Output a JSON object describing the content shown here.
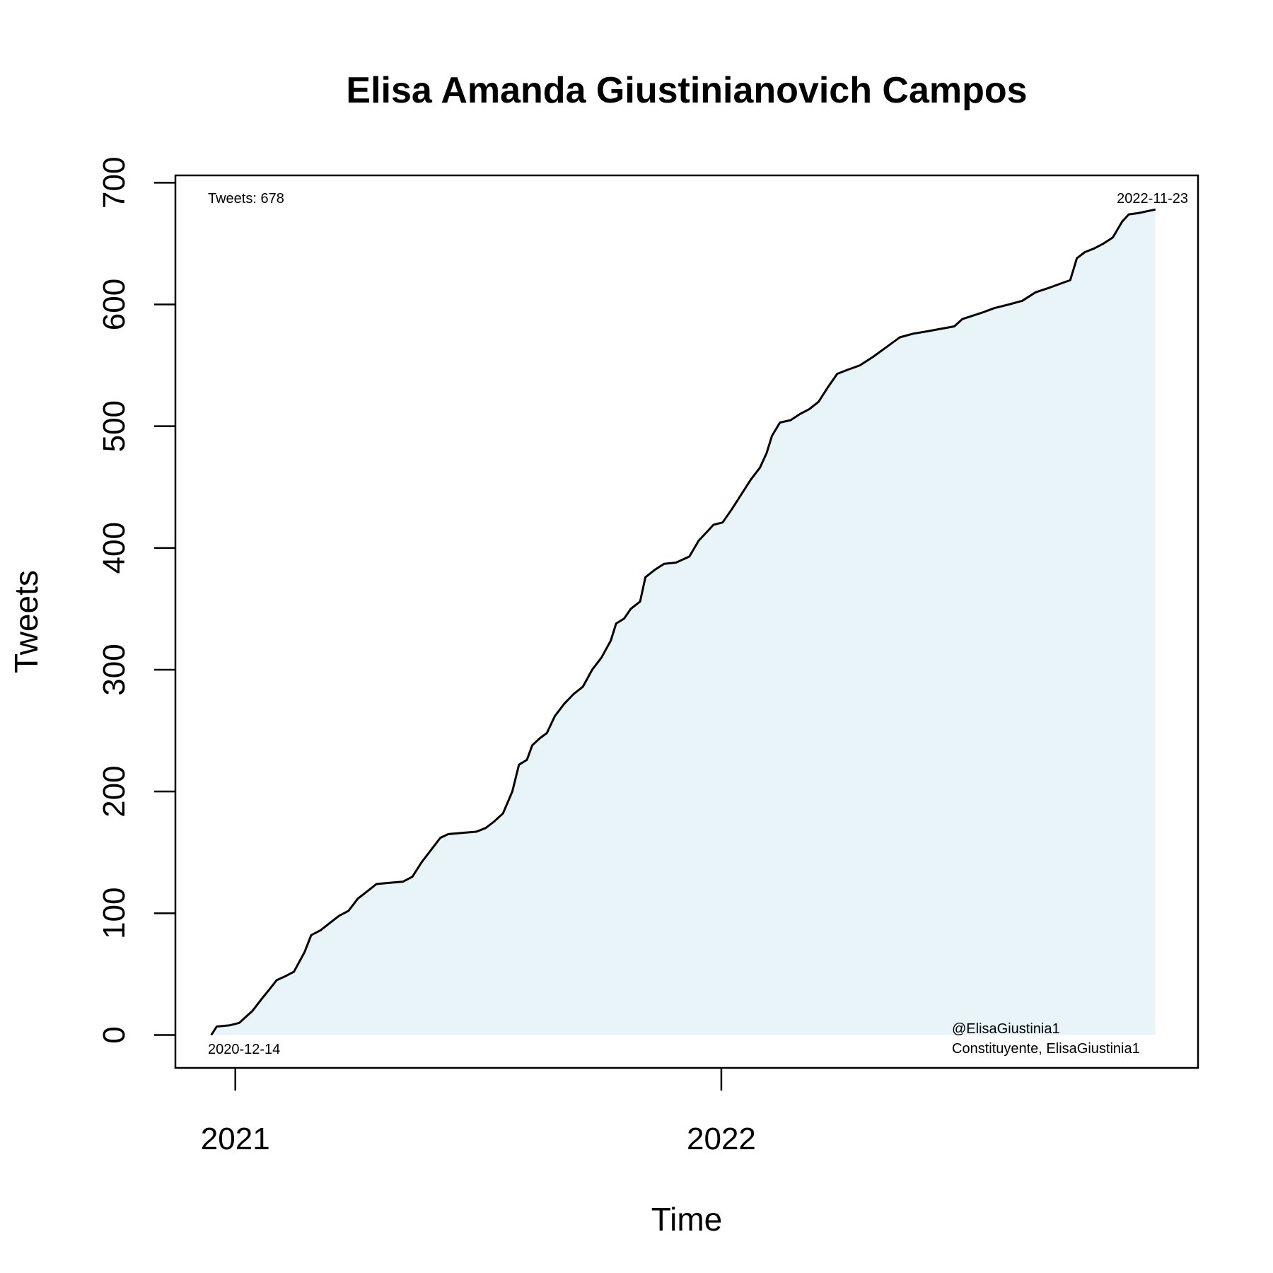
{
  "chart_data": {
    "type": "area",
    "title": "Elisa Amanda Giustinianovich Campos",
    "xlabel": "Time",
    "ylabel": "Tweets",
    "xlim": [
      "2020-11-17",
      "2022-12-25"
    ],
    "ylim": [
      -27,
      706
    ],
    "x_ticks": [
      {
        "date": "2021-01-01",
        "label": "2021"
      },
      {
        "date": "2022-01-01",
        "label": "2022"
      }
    ],
    "y_ticks": [
      0,
      100,
      200,
      300,
      400,
      500,
      600,
      700
    ],
    "grid": false,
    "fill_color": "#e8f4f8",
    "line_color": "#000000",
    "annotations": {
      "total": "Tweets: 678",
      "start_date": "2020-12-14",
      "end_date": "2022-11-23",
      "handle": "@ElisaGiustinia1",
      "source": "Constituyente, ElisaGiustinia1"
    },
    "series": [
      {
        "points": [
          [
            "2020-12-14",
            0
          ],
          [
            "2020-12-18",
            7
          ],
          [
            "2020-12-28",
            8
          ],
          [
            "2021-01-04",
            10
          ],
          [
            "2021-01-08",
            14
          ],
          [
            "2021-01-14",
            20
          ],
          [
            "2021-01-21",
            30
          ],
          [
            "2021-01-27",
            38
          ],
          [
            "2021-02-01",
            45
          ],
          [
            "2021-02-07",
            48
          ],
          [
            "2021-02-14",
            52
          ],
          [
            "2021-02-17",
            58
          ],
          [
            "2021-02-22",
            68
          ],
          [
            "2021-02-27",
            82
          ],
          [
            "2021-03-06",
            86
          ],
          [
            "2021-03-13",
            92
          ],
          [
            "2021-03-20",
            98
          ],
          [
            "2021-03-27",
            102
          ],
          [
            "2021-04-03",
            112
          ],
          [
            "2021-04-10",
            118
          ],
          [
            "2021-04-17",
            124
          ],
          [
            "2021-04-27",
            125
          ],
          [
            "2021-05-07",
            126
          ],
          [
            "2021-05-14",
            130
          ],
          [
            "2021-05-21",
            142
          ],
          [
            "2021-05-28",
            152
          ],
          [
            "2021-06-04",
            162
          ],
          [
            "2021-06-10",
            165
          ],
          [
            "2021-06-20",
            166
          ],
          [
            "2021-07-01",
            167
          ],
          [
            "2021-07-08",
            170
          ],
          [
            "2021-07-14",
            175
          ],
          [
            "2021-07-21",
            182
          ],
          [
            "2021-07-28",
            200
          ],
          [
            "2021-08-02",
            222
          ],
          [
            "2021-08-08",
            226
          ],
          [
            "2021-08-12",
            238
          ],
          [
            "2021-08-18",
            244
          ],
          [
            "2021-08-23",
            248
          ],
          [
            "2021-08-29",
            262
          ],
          [
            "2021-09-05",
            272
          ],
          [
            "2021-09-12",
            280
          ],
          [
            "2021-09-19",
            286
          ],
          [
            "2021-09-26",
            300
          ],
          [
            "2021-10-03",
            310
          ],
          [
            "2021-10-10",
            324
          ],
          [
            "2021-10-14",
            338
          ],
          [
            "2021-10-20",
            342
          ],
          [
            "2021-10-25",
            350
          ],
          [
            "2021-11-01",
            356
          ],
          [
            "2021-11-05",
            376
          ],
          [
            "2021-11-12",
            382
          ],
          [
            "2021-11-19",
            387
          ],
          [
            "2021-11-28",
            388
          ],
          [
            "2021-12-08",
            393
          ],
          [
            "2021-12-15",
            406
          ],
          [
            "2021-12-21",
            413
          ],
          [
            "2021-12-26",
            419
          ],
          [
            "2022-01-02",
            421
          ],
          [
            "2022-01-09",
            432
          ],
          [
            "2022-01-16",
            444
          ],
          [
            "2022-01-23",
            456
          ],
          [
            "2022-01-30",
            466
          ],
          [
            "2022-02-04",
            478
          ],
          [
            "2022-02-08",
            492
          ],
          [
            "2022-02-14",
            503
          ],
          [
            "2022-02-22",
            505
          ],
          [
            "2022-03-01",
            510
          ],
          [
            "2022-03-08",
            514
          ],
          [
            "2022-03-15",
            520
          ],
          [
            "2022-03-22",
            532
          ],
          [
            "2022-03-29",
            543
          ],
          [
            "2022-04-05",
            546
          ],
          [
            "2022-04-15",
            550
          ],
          [
            "2022-04-25",
            557
          ],
          [
            "2022-05-05",
            565
          ],
          [
            "2022-05-15",
            573
          ],
          [
            "2022-05-25",
            576
          ],
          [
            "2022-06-05",
            578
          ],
          [
            "2022-06-15",
            580
          ],
          [
            "2022-06-25",
            582
          ],
          [
            "2022-07-01",
            588
          ],
          [
            "2022-07-15",
            593
          ],
          [
            "2022-07-25",
            597
          ],
          [
            "2022-08-05",
            600
          ],
          [
            "2022-08-15",
            603
          ],
          [
            "2022-08-25",
            610
          ],
          [
            "2022-09-05",
            614
          ],
          [
            "2022-09-15",
            618
          ],
          [
            "2022-09-20",
            620
          ],
          [
            "2022-09-25",
            638
          ],
          [
            "2022-10-01",
            643
          ],
          [
            "2022-10-08",
            646
          ],
          [
            "2022-10-15",
            650
          ],
          [
            "2022-10-22",
            655
          ],
          [
            "2022-10-29",
            668
          ],
          [
            "2022-11-03",
            674
          ],
          [
            "2022-11-10",
            675
          ],
          [
            "2022-11-23",
            678
          ]
        ]
      }
    ]
  }
}
